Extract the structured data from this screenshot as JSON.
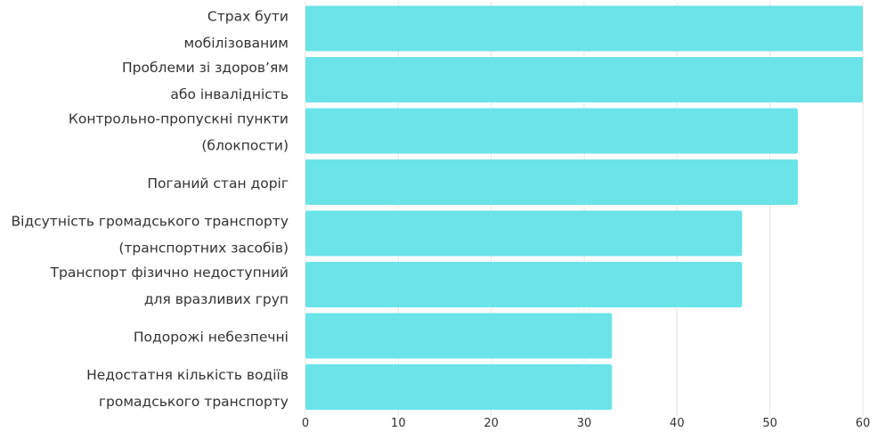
{
  "chart_data": {
    "type": "bar",
    "orientation": "horizontal",
    "categories": [
      [
        "Страх бути",
        "мобілізованим"
      ],
      [
        "Проблеми зі здоров’ям",
        "або інвалідність"
      ],
      [
        "Контрольно-пропускні пункти",
        "(блокпости)"
      ],
      [
        "Поганий стан доріг"
      ],
      [
        "Відсутність громадського транспорту",
        "(транспортних засобів)"
      ],
      [
        "Транспорт фізично недоступний",
        "для вразливих груп"
      ],
      [
        "Подорожі небезпечні"
      ],
      [
        "Недостатня кількість водіїв",
        "громадського транспорту"
      ]
    ],
    "values": [
      60,
      60,
      53,
      53,
      47,
      47,
      33,
      33
    ],
    "xlim": [
      0,
      60
    ],
    "xticks": [
      0,
      10,
      20,
      30,
      40,
      50,
      60
    ],
    "grid": "vertical",
    "legend": "none",
    "bar_color": "#6ae4e9",
    "title": "",
    "xlabel": "",
    "ylabel": ""
  }
}
